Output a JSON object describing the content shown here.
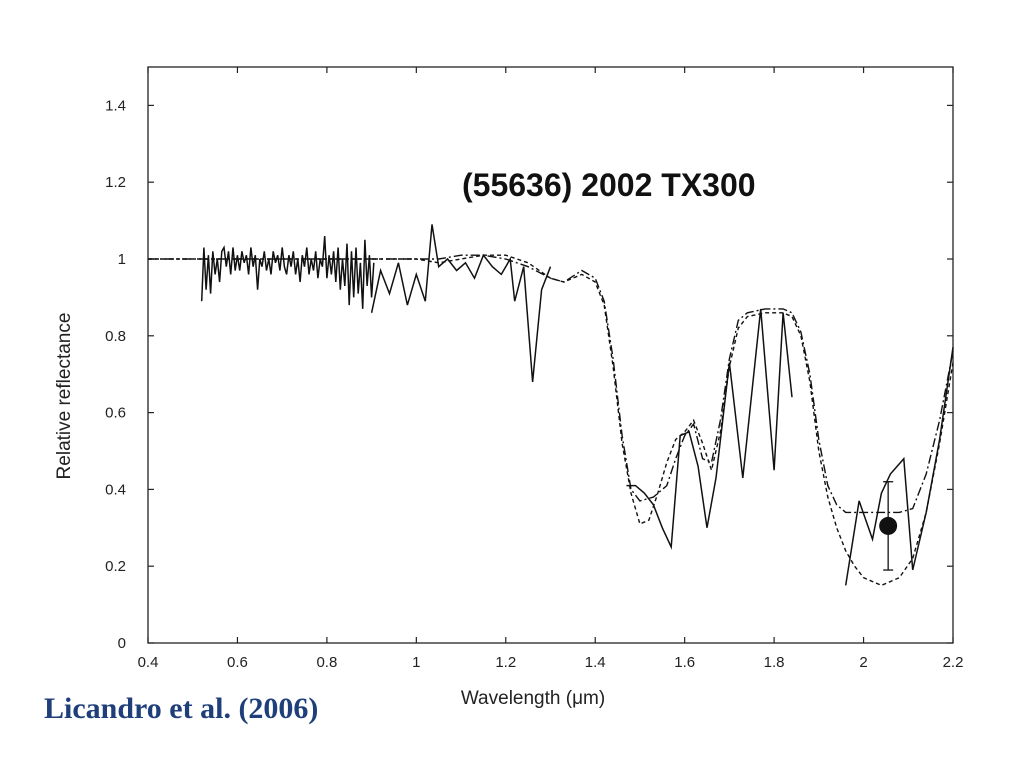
{
  "chart_data": {
    "type": "line",
    "title": "(55636) 2002 TX300",
    "xlabel": "Wavelength (μm)",
    "ylabel": "Relative reflectance",
    "xlim": [
      0.4,
      2.2
    ],
    "ylim": [
      0,
      1.5
    ],
    "x_ticks": [
      "0.4",
      "0.6",
      "0.8",
      "1",
      "1.2",
      "1.4",
      "1.6",
      "1.8",
      "2",
      "2.2"
    ],
    "y_ticks": [
      "0",
      "0.2",
      "0.4",
      "0.6",
      "0.8",
      "1",
      "1.2",
      "1.4"
    ],
    "x_tick_values": [
      0.4,
      0.6,
      0.8,
      1.0,
      1.2,
      1.4,
      1.6,
      1.8,
      2.0,
      2.2
    ],
    "y_tick_values": [
      0,
      0.2,
      0.4,
      0.6,
      0.8,
      1.0,
      1.2,
      1.4
    ],
    "grid": false,
    "series": [
      {
        "style": "solid",
        "segments": [
          [
            [
              0.52,
              0.89
            ],
            [
              0.525,
              1.03
            ],
            [
              0.53,
              0.92
            ],
            [
              0.535,
              1.01
            ],
            [
              0.54,
              0.91
            ],
            [
              0.545,
              1.02
            ],
            [
              0.55,
              0.96
            ],
            [
              0.555,
              1.0
            ],
            [
              0.56,
              0.94
            ],
            [
              0.565,
              1.02
            ],
            [
              0.57,
              1.03
            ],
            [
              0.575,
              0.98
            ],
            [
              0.58,
              1.02
            ],
            [
              0.585,
              0.96
            ],
            [
              0.59,
              1.03
            ],
            [
              0.595,
              0.97
            ],
            [
              0.6,
              1.01
            ],
            [
              0.605,
              0.97
            ],
            [
              0.61,
              1.02
            ],
            [
              0.615,
              0.99
            ],
            [
              0.62,
              1.01
            ],
            [
              0.625,
              0.96
            ],
            [
              0.63,
              1.03
            ],
            [
              0.635,
              0.98
            ],
            [
              0.64,
              1.01
            ],
            [
              0.645,
              0.92
            ],
            [
              0.65,
              1.0
            ],
            [
              0.655,
              0.98
            ],
            [
              0.66,
              1.02
            ],
            [
              0.665,
              0.97
            ],
            [
              0.67,
              1.0
            ],
            [
              0.675,
              0.96
            ],
            [
              0.68,
              1.02
            ],
            [
              0.685,
              0.99
            ],
            [
              0.69,
              1.01
            ],
            [
              0.695,
              0.97
            ],
            [
              0.7,
              1.03
            ],
            [
              0.705,
              0.98
            ],
            [
              0.71,
              0.96
            ],
            [
              0.715,
              1.01
            ],
            [
              0.72,
              0.98
            ],
            [
              0.725,
              1.02
            ],
            [
              0.73,
              0.96
            ],
            [
              0.735,
              1.0
            ],
            [
              0.74,
              0.94
            ],
            [
              0.745,
              1.01
            ],
            [
              0.75,
              0.98
            ],
            [
              0.755,
              1.03
            ],
            [
              0.76,
              0.96
            ],
            [
              0.765,
              1.0
            ],
            [
              0.77,
              0.97
            ],
            [
              0.775,
              1.02
            ],
            [
              0.78,
              0.95
            ],
            [
              0.785,
              1.0
            ],
            [
              0.79,
              0.98
            ],
            [
              0.795,
              1.06
            ],
            [
              0.8,
              0.95
            ],
            [
              0.805,
              1.01
            ],
            [
              0.81,
              0.96
            ],
            [
              0.815,
              1.02
            ],
            [
              0.82,
              0.94
            ],
            [
              0.825,
              1.03
            ],
            [
              0.83,
              0.92
            ],
            [
              0.835,
              1.0
            ],
            [
              0.84,
              0.93
            ],
            [
              0.845,
              1.04
            ],
            [
              0.85,
              0.88
            ],
            [
              0.855,
              1.02
            ],
            [
              0.86,
              0.9
            ],
            [
              0.865,
              1.03
            ],
            [
              0.87,
              0.91
            ],
            [
              0.875,
              0.99
            ],
            [
              0.88,
              0.87
            ],
            [
              0.885,
              1.05
            ],
            [
              0.89,
              0.93
            ],
            [
              0.895,
              1.01
            ],
            [
              0.9,
              0.9
            ],
            [
              0.905,
              0.99
            ]
          ],
          [
            [
              0.9,
              0.86
            ],
            [
              0.92,
              0.97
            ],
            [
              0.94,
              0.91
            ],
            [
              0.96,
              0.99
            ],
            [
              0.98,
              0.88
            ],
            [
              1.0,
              0.96
            ],
            [
              1.02,
              0.89
            ],
            [
              1.035,
              1.09
            ],
            [
              1.05,
              0.98
            ],
            [
              1.07,
              1.0
            ],
            [
              1.09,
              0.97
            ],
            [
              1.11,
              0.99
            ],
            [
              1.13,
              0.95
            ],
            [
              1.15,
              1.01
            ],
            [
              1.17,
              0.98
            ],
            [
              1.19,
              0.96
            ],
            [
              1.21,
              1.0
            ],
            [
              1.22,
              0.89
            ],
            [
              1.24,
              0.98
            ],
            [
              1.26,
              0.68
            ],
            [
              1.28,
              0.92
            ],
            [
              1.3,
              0.98
            ]
          ],
          [
            [
              1.47,
              0.41
            ],
            [
              1.49,
              0.41
            ],
            [
              1.51,
              0.39
            ],
            [
              1.53,
              0.36
            ],
            [
              1.55,
              0.3
            ],
            [
              1.57,
              0.25
            ],
            [
              1.59,
              0.54
            ],
            [
              1.61,
              0.55
            ],
            [
              1.63,
              0.46
            ],
            [
              1.65,
              0.3
            ],
            [
              1.67,
              0.43
            ],
            [
              1.7,
              0.73
            ],
            [
              1.73,
              0.43
            ],
            [
              1.77,
              0.87
            ],
            [
              1.8,
              0.45
            ],
            [
              1.82,
              0.86
            ],
            [
              1.84,
              0.64
            ]
          ],
          [
            [
              1.96,
              0.15
            ],
            [
              1.99,
              0.37
            ],
            [
              2.02,
              0.27
            ],
            [
              2.04,
              0.39
            ],
            [
              2.06,
              0.44
            ],
            [
              2.09,
              0.48
            ],
            [
              2.11,
              0.19
            ],
            [
              2.14,
              0.34
            ],
            [
              2.17,
              0.53
            ],
            [
              2.2,
              0.77
            ]
          ]
        ]
      },
      {
        "style": "dashed",
        "segments": [
          [
            [
              0.4,
              1.0
            ],
            [
              0.5,
              1.0
            ],
            [
              0.6,
              1.0
            ],
            [
              0.7,
              1.0
            ],
            [
              0.8,
              1.0
            ],
            [
              0.9,
              1.0
            ],
            [
              1.0,
              1.0
            ],
            [
              1.05,
              0.99
            ],
            [
              1.1,
              1.0
            ],
            [
              1.15,
              1.01
            ],
            [
              1.2,
              1.01
            ],
            [
              1.25,
              0.99
            ],
            [
              1.3,
              0.95
            ],
            [
              1.33,
              0.94
            ],
            [
              1.37,
              0.96
            ],
            [
              1.4,
              0.94
            ],
            [
              1.42,
              0.88
            ],
            [
              1.44,
              0.72
            ],
            [
              1.46,
              0.52
            ],
            [
              1.48,
              0.39
            ],
            [
              1.5,
              0.31
            ],
            [
              1.52,
              0.32
            ],
            [
              1.54,
              0.39
            ],
            [
              1.56,
              0.47
            ],
            [
              1.58,
              0.53
            ],
            [
              1.6,
              0.55
            ],
            [
              1.62,
              0.58
            ],
            [
              1.64,
              0.52
            ],
            [
              1.66,
              0.45
            ],
            [
              1.68,
              0.55
            ],
            [
              1.7,
              0.72
            ],
            [
              1.72,
              0.82
            ],
            [
              1.74,
              0.85
            ],
            [
              1.78,
              0.86
            ],
            [
              1.82,
              0.86
            ],
            [
              1.84,
              0.85
            ],
            [
              1.86,
              0.8
            ],
            [
              1.88,
              0.68
            ],
            [
              1.9,
              0.5
            ],
            [
              1.92,
              0.38
            ],
            [
              1.94,
              0.3
            ],
            [
              1.96,
              0.24
            ],
            [
              1.98,
              0.2
            ],
            [
              2.0,
              0.17
            ],
            [
              2.04,
              0.15
            ],
            [
              2.08,
              0.17
            ],
            [
              2.11,
              0.22
            ],
            [
              2.14,
              0.34
            ],
            [
              2.17,
              0.52
            ],
            [
              2.2,
              0.73
            ]
          ]
        ]
      },
      {
        "style": "dash-dot",
        "segments": [
          [
            [
              0.4,
              1.0
            ],
            [
              0.5,
              1.0
            ],
            [
              0.6,
              1.0
            ],
            [
              0.7,
              1.0
            ],
            [
              0.8,
              1.0
            ],
            [
              0.9,
              1.0
            ],
            [
              1.0,
              1.0
            ],
            [
              1.05,
              1.0
            ],
            [
              1.1,
              1.01
            ],
            [
              1.15,
              1.01
            ],
            [
              1.2,
              1.0
            ],
            [
              1.25,
              0.98
            ],
            [
              1.3,
              0.95
            ],
            [
              1.33,
              0.94
            ],
            [
              1.37,
              0.97
            ],
            [
              1.4,
              0.95
            ],
            [
              1.42,
              0.89
            ],
            [
              1.44,
              0.74
            ],
            [
              1.46,
              0.54
            ],
            [
              1.48,
              0.4
            ],
            [
              1.5,
              0.37
            ],
            [
              1.53,
              0.38
            ],
            [
              1.56,
              0.41
            ],
            [
              1.58,
              0.48
            ],
            [
              1.6,
              0.54
            ],
            [
              1.62,
              0.57
            ],
            [
              1.64,
              0.48
            ],
            [
              1.66,
              0.47
            ],
            [
              1.68,
              0.58
            ],
            [
              1.7,
              0.74
            ],
            [
              1.72,
              0.84
            ],
            [
              1.74,
              0.86
            ],
            [
              1.78,
              0.87
            ],
            [
              1.82,
              0.87
            ],
            [
              1.84,
              0.86
            ],
            [
              1.86,
              0.81
            ],
            [
              1.88,
              0.7
            ],
            [
              1.9,
              0.53
            ],
            [
              1.92,
              0.41
            ],
            [
              1.94,
              0.36
            ],
            [
              1.96,
              0.34
            ],
            [
              2.0,
              0.34
            ],
            [
              2.04,
              0.34
            ],
            [
              2.08,
              0.34
            ],
            [
              2.11,
              0.35
            ],
            [
              2.14,
              0.44
            ],
            [
              2.17,
              0.58
            ],
            [
              2.2,
              0.76
            ]
          ]
        ]
      }
    ],
    "point": {
      "x": 2.055,
      "y": 0.305,
      "yerr_low": 0.19,
      "yerr_high": 0.42
    }
  },
  "credit": "Licandro et al. (2006)"
}
